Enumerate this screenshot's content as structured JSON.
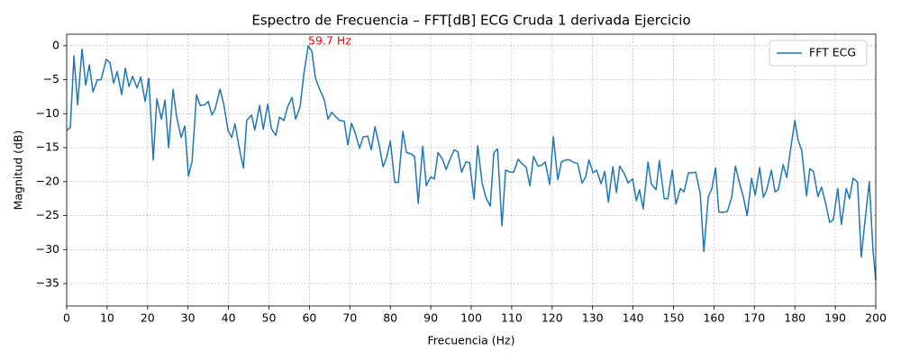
{
  "chart_data": {
    "type": "line",
    "title": "Espectro de Frecuencia – FFT[dB] ECG Cruda 1 derivada Ejercicio",
    "x_label": "Frecuencia (Hz)",
    "y_label": "Magnitud (dB)",
    "xlim": [
      0,
      200
    ],
    "ylim": [
      -38.3,
      1.7
    ],
    "xticks": [
      0,
      10,
      20,
      30,
      40,
      50,
      60,
      70,
      80,
      90,
      100,
      110,
      120,
      130,
      140,
      150,
      160,
      170,
      180,
      190,
      200
    ],
    "yticks": [
      0,
      {
        "value": -5,
        "label": "−5"
      },
      {
        "value": -10,
        "label": "−10"
      },
      {
        "value": -15,
        "label": "−15"
      },
      {
        "value": -20,
        "label": "−20"
      },
      {
        "value": -25,
        "label": "−25"
      },
      {
        "value": -30,
        "label": "−30"
      },
      {
        "value": -35,
        "label": "−35"
      }
    ],
    "grid": true,
    "legend": "upper right",
    "x": [
      0,
      0.9,
      1.8,
      2.7,
      3.8,
      4.7,
      5.6,
      6.5,
      7.6,
      8.5,
      9.8,
      10.7,
      11.6,
      12.5,
      13.6,
      14.5,
      15.4,
      16.3,
      17.4,
      18.3,
      19.4,
      20.3,
      21.4,
      22.3,
      23.4,
      24.3,
      25.2,
      26.3,
      27.2,
      28.3,
      29.2,
      30.1,
      31,
      32.1,
      33,
      34.1,
      35,
      35.9,
      36.7,
      37.9,
      38.8,
      39.9,
      40.8,
      41.6,
      42.8,
      43.7,
      44.5,
      45.7,
      46.5,
      47.7,
      48.6,
      49.7,
      50.6,
      51.7,
      52.6,
      53.7,
      54.6,
      55.7,
      56.6,
      57.7,
      58.6,
      59.7,
      60.6,
      61.5,
      62.6,
      63.7,
      64.6,
      65.5,
      66.6,
      67.5,
      68.6,
      69.5,
      70.4,
      71.3,
      72.4,
      73.3,
      74.4,
      75.3,
      76.2,
      77.3,
      78.2,
      79.1,
      80,
      81.1,
      82,
      83.1,
      84,
      85.1,
      86,
      86.9,
      88,
      88.9,
      90,
      90.9,
      91.8,
      92.9,
      93.8,
      94.9,
      95.8,
      96.7,
      97.6,
      98.7,
      99.6,
      100.7,
      101.6,
      102.7,
      103.6,
      104.7,
      105.6,
      106.5,
      107.6,
      108.5,
      109.6,
      110.5,
      111.6,
      112.5,
      113.6,
      114.5,
      115.4,
      116.5,
      117.4,
      118.3,
      119.4,
      120.3,
      121.4,
      122.3,
      123.4,
      124.3,
      125.4,
      126.3,
      127.4,
      128.3,
      129.1,
      130.1,
      131,
      132.1,
      133,
      133.9,
      135,
      135.9,
      136.7,
      137.9,
      138.8,
      139.9,
      140.8,
      141.6,
      142.5,
      143.7,
      144.5,
      145.7,
      146.5,
      147.7,
      148.6,
      149.7,
      150.6,
      151.7,
      152.6,
      153.7,
      154.6,
      155.5,
      156.6,
      157.5,
      158.6,
      159.5,
      160.4,
      161.2,
      162.4,
      163.3,
      164.4,
      165.3,
      166.4,
      167.3,
      168.2,
      169.3,
      170.2,
      171.3,
      172.2,
      173,
      174.2,
      175.1,
      175.9,
      177.1,
      178,
      178.8,
      180,
      180.8,
      181.7,
      182.9,
      183.7,
      184.6,
      185.7,
      186.6,
      187.7,
      188.6,
      189.5,
      190.6,
      191.5,
      192.7,
      193.5,
      194.4,
      195.5,
      196.4,
      197.3,
      198.4,
      199.3,
      200
    ],
    "series": [
      {
        "name": "FFT ECG",
        "color": "#1f77b4",
        "values": [
          -12.5,
          -12,
          -1.5,
          -8.7,
          -0.5,
          -5.8,
          -2.8,
          -6.8,
          -5,
          -5,
          -2,
          -2.5,
          -5.5,
          -3.8,
          -7.2,
          -3.3,
          -6,
          -4.5,
          -6.2,
          -4.6,
          -8.2,
          -4.8,
          -16.8,
          -7.8,
          -10.8,
          -8,
          -15,
          -6.4,
          -10.5,
          -13.5,
          -11.8,
          -19.2,
          -17,
          -7.2,
          -8.8,
          -8.7,
          -8.2,
          -10.2,
          -9.3,
          -6.4,
          -8.5,
          -12.5,
          -13.5,
          -11.5,
          -15.5,
          -18,
          -11,
          -10.2,
          -12.4,
          -8.8,
          -12.3,
          -8.6,
          -12.2,
          -13.2,
          -10.5,
          -11,
          -9,
          -7.6,
          -10.8,
          -9,
          -4.3,
          0,
          -0.8,
          -4.8,
          -6.5,
          -8,
          -10.8,
          -9.8,
          -10.5,
          -11,
          -11.1,
          -14.6,
          -11.4,
          -12.8,
          -15.1,
          -13.4,
          -13.3,
          -15.3,
          -11.9,
          -14.8,
          -17.8,
          -16.4,
          -14,
          -20.1,
          -20.1,
          -12.6,
          -15.7,
          -15.9,
          -16.3,
          -23.2,
          -14.8,
          -20.6,
          -19.3,
          -19.6,
          -15.7,
          -16.7,
          -18.2,
          -16.5,
          -15.3,
          -15.6,
          -18.6,
          -17.1,
          -17.2,
          -22.6,
          -14.7,
          -20.2,
          -22.3,
          -23.6,
          -15.7,
          -15.2,
          -26.5,
          -18.3,
          -18.6,
          -18.6,
          -16.7,
          -17.3,
          -17.9,
          -20.6,
          -16.3,
          -17.7,
          -17.6,
          -17.1,
          -20.4,
          -13.4,
          -19.7,
          -17.1,
          -16.8,
          -16.8,
          -17.2,
          -17.3,
          -20.2,
          -19.3,
          -16.8,
          -18.7,
          -18.3,
          -20.3,
          -18.5,
          -23,
          -17.8,
          -21.6,
          -17.7,
          -18.9,
          -20.2,
          -19.6,
          -22.8,
          -21.2,
          -24,
          -17.1,
          -20.3,
          -21.2,
          -16.9,
          -22.5,
          -22.5,
          -18.3,
          -23.3,
          -21,
          -21.5,
          -18.7,
          -18.7,
          -18.6,
          -21.7,
          -30.3,
          -22.2,
          -21,
          -18,
          -24.5,
          -24.5,
          -24.4,
          -22.3,
          -17.7,
          -20.4,
          -22.3,
          -25,
          -19.5,
          -22,
          -17.9,
          -22.3,
          -21.3,
          -18.3,
          -21.5,
          -21.2,
          -17.5,
          -19.4,
          -15.8,
          -11,
          -13.9,
          -15.4,
          -22.1,
          -18.1,
          -18.5,
          -22.2,
          -20.8,
          -23.4,
          -26,
          -25.6,
          -21,
          -26.3,
          -21,
          -22.5,
          -19.5,
          -20.1,
          -31.1,
          -26,
          -20,
          -30,
          -34.5
        ]
      }
    ],
    "annotations": [
      {
        "text": "59.7 Hz",
        "x": 59.7,
        "y": 0,
        "color": "red"
      }
    ]
  }
}
